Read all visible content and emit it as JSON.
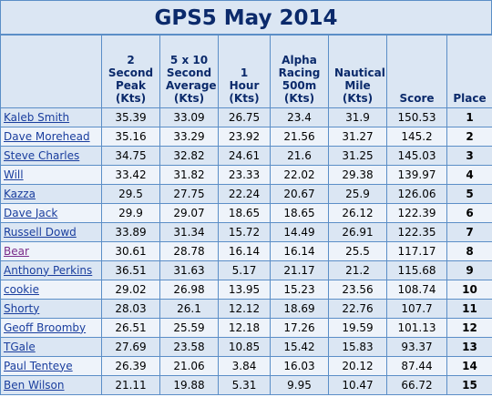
{
  "title": "GPS5 May 2014",
  "headers": {
    "name": "",
    "peak": "2 Second Peak (Kts)",
    "avg": "5 x 10 Second Average (Kts)",
    "hour": "1 Hour (Kts)",
    "alpha": "Alpha Racing 500m (Kts)",
    "nautical": "Nautical Mile (Kts)",
    "score": "Score",
    "place": "Place"
  },
  "rows": [
    {
      "name": "Kaleb Smith",
      "peak": "35.39",
      "avg": "33.09",
      "hour": "26.75",
      "alpha": "23.4",
      "nautical": "31.9",
      "score": "150.53",
      "place": "1"
    },
    {
      "name": "Dave Morehead",
      "peak": "35.16",
      "avg": "33.29",
      "hour": "23.92",
      "alpha": "21.56",
      "nautical": "31.27",
      "score": "145.2",
      "place": "2"
    },
    {
      "name": "Steve Charles",
      "peak": "34.75",
      "avg": "32.82",
      "hour": "24.61",
      "alpha": "21.6",
      "nautical": "31.25",
      "score": "145.03",
      "place": "3"
    },
    {
      "name": "Will",
      "peak": "33.42",
      "avg": "31.82",
      "hour": "23.33",
      "alpha": "22.02",
      "nautical": "29.38",
      "score": "139.97",
      "place": "4"
    },
    {
      "name": "Kazza",
      "peak": "29.5",
      "avg": "27.75",
      "hour": "22.24",
      "alpha": "20.67",
      "nautical": "25.9",
      "score": "126.06",
      "place": "5"
    },
    {
      "name": "Dave Jack",
      "peak": "29.9",
      "avg": "29.07",
      "hour": "18.65",
      "alpha": "18.65",
      "nautical": "26.12",
      "score": "122.39",
      "place": "6"
    },
    {
      "name": "Russell Dowd",
      "peak": "33.89",
      "avg": "31.34",
      "hour": "15.72",
      "alpha": "14.49",
      "nautical": "26.91",
      "score": "122.35",
      "place": "7"
    },
    {
      "name": "Bear",
      "peak": "30.61",
      "avg": "28.78",
      "hour": "16.14",
      "alpha": "16.14",
      "nautical": "25.5",
      "score": "117.17",
      "place": "8",
      "visited": true
    },
    {
      "name": "Anthony Perkins",
      "peak": "36.51",
      "avg": "31.63",
      "hour": "5.17",
      "alpha": "21.17",
      "nautical": "21.2",
      "score": "115.68",
      "place": "9"
    },
    {
      "name": "cookie",
      "peak": "29.02",
      "avg": "26.98",
      "hour": "13.95",
      "alpha": "15.23",
      "nautical": "23.56",
      "score": "108.74",
      "place": "10"
    },
    {
      "name": "Shorty",
      "peak": "28.03",
      "avg": "26.1",
      "hour": "12.12",
      "alpha": "18.69",
      "nautical": "22.76",
      "score": "107.7",
      "place": "11"
    },
    {
      "name": "Geoff Broomby",
      "peak": "26.51",
      "avg": "25.59",
      "hour": "12.18",
      "alpha": "17.26",
      "nautical": "19.59",
      "score": "101.13",
      "place": "12"
    },
    {
      "name": "TGale",
      "peak": "27.69",
      "avg": "23.58",
      "hour": "10.85",
      "alpha": "15.42",
      "nautical": "15.83",
      "score": "93.37",
      "place": "13"
    },
    {
      "name": "Paul Tenteye",
      "peak": "26.39",
      "avg": "21.06",
      "hour": "3.84",
      "alpha": "16.03",
      "nautical": "20.12",
      "score": "87.44",
      "place": "14"
    },
    {
      "name": "Ben Wilson",
      "peak": "21.11",
      "avg": "19.88",
      "hour": "5.31",
      "alpha": "9.95",
      "nautical": "10.47",
      "score": "66.72",
      "place": "15"
    }
  ]
}
